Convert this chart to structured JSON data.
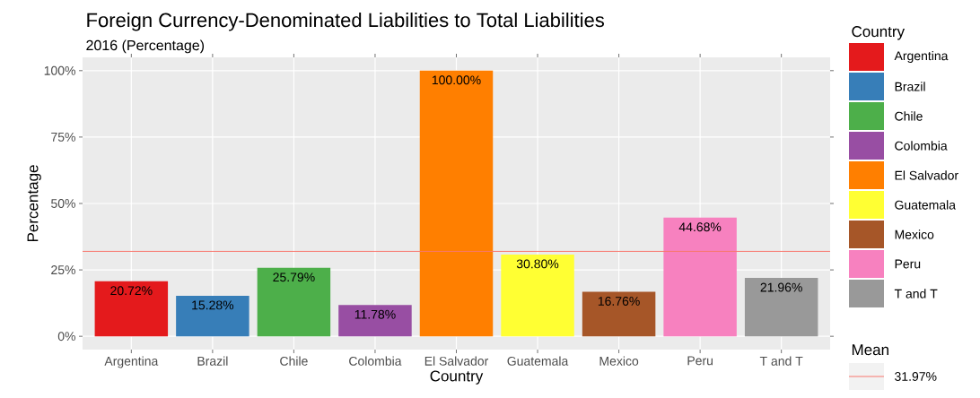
{
  "chart_data": {
    "type": "bar",
    "title": "Foreign Currency-Denominated Liabilities to Total Liabilities",
    "subtitle": "2016 (Percentage)",
    "xlabel": "Country",
    "ylabel": "Percentage",
    "legend_title": "Country",
    "categories": [
      "Argentina",
      "Brazil",
      "Chile",
      "Colombia",
      "El Salvador",
      "Guatemala",
      "Mexico",
      "Peru",
      "T and T"
    ],
    "values": [
      20.72,
      15.28,
      25.79,
      11.78,
      100.0,
      30.8,
      16.76,
      44.68,
      21.96
    ],
    "colors": [
      "#e41a1c",
      "#377eb8",
      "#4daf4a",
      "#984ea3",
      "#ff7f00",
      "#ffff33",
      "#a65628",
      "#f781bf",
      "#999999"
    ],
    "value_labels": [
      "20.72%",
      "15.28%",
      "25.79%",
      "11.78%",
      "100.00%",
      "30.80%",
      "16.76%",
      "44.68%",
      "21.96%"
    ],
    "ylim": [
      -5,
      105
    ],
    "yticks": [
      {
        "value": 0,
        "label": "0%"
      },
      {
        "value": 25,
        "label": "25%"
      },
      {
        "value": 50,
        "label": "50%"
      },
      {
        "value": 75,
        "label": "75%"
      },
      {
        "value": 100,
        "label": "100%"
      }
    ],
    "ref_lines": [
      {
        "axis": "y",
        "value": 31.97,
        "label": "31.97%",
        "color": "#f8766d"
      }
    ],
    "annotations": [
      "Mean"
    ],
    "grid": true,
    "legend": "right"
  }
}
